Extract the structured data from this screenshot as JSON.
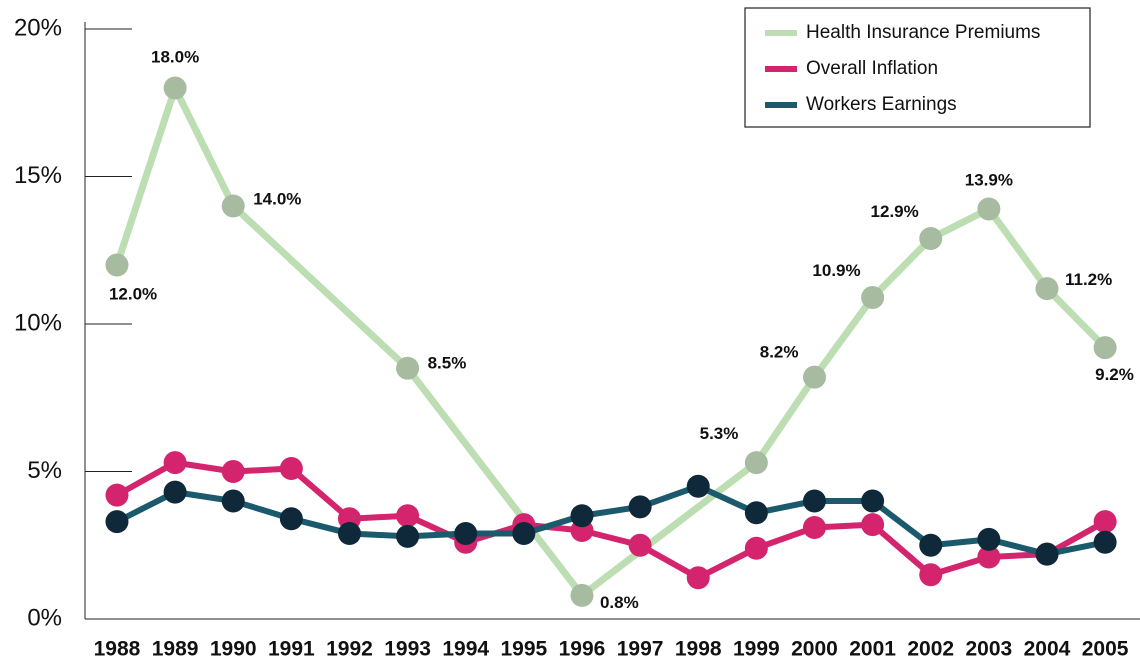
{
  "chart_data": {
    "type": "line",
    "xlim": [
      1987.45,
      2005.6
    ],
    "xticks": [
      1988,
      1989,
      1990,
      1991,
      1992,
      1993,
      1994,
      1995,
      1996,
      1997,
      1998,
      1999,
      2000,
      2001,
      2002,
      2003,
      2004,
      2005
    ],
    "ylim": [
      0,
      20
    ],
    "yticks": [
      {
        "value": 0,
        "label": "0%"
      },
      {
        "value": 5,
        "label": "5%"
      },
      {
        "value": 10,
        "label": "10%"
      },
      {
        "value": 15,
        "label": "15%"
      },
      {
        "value": 20,
        "label": "20%"
      }
    ],
    "legend": "upper right",
    "series": [
      {
        "name": "Health Insurance Premiums",
        "color": "#bcdeb2",
        "marker_color": "#a6bb9f",
        "x": [
          1988,
          1989,
          1990,
          1993,
          1996,
          1999,
          2000,
          2001,
          2002,
          2003,
          2004,
          2005
        ],
        "values": [
          12.0,
          18.0,
          14.0,
          8.5,
          0.8,
          5.3,
          8.2,
          10.9,
          12.9,
          13.9,
          11.2,
          9.2
        ],
        "value_labels": [
          "12.0%",
          "18.0%",
          "14.0%",
          "8.5%",
          "0.8%",
          "5.3%",
          "8.2%",
          "10.9%",
          "12.9%",
          "13.9%",
          "11.2%",
          "9.2%"
        ]
      },
      {
        "name": "Overall Inflation",
        "color": "#d4246d",
        "marker_color": "#d4246d",
        "x": [
          1988,
          1989,
          1990,
          1991,
          1992,
          1993,
          1994,
          1995,
          1996,
          1997,
          1998,
          1999,
          2000,
          2001,
          2002,
          2003,
          2004,
          2005
        ],
        "values": [
          4.2,
          5.3,
          5.0,
          5.1,
          3.4,
          3.5,
          2.6,
          3.2,
          3.0,
          2.5,
          1.4,
          2.4,
          3.1,
          3.2,
          1.5,
          2.1,
          2.2,
          3.3
        ]
      },
      {
        "name": "Workers Earnings",
        "color": "#1b5a6d",
        "marker_color": "#10293a",
        "x": [
          1988,
          1989,
          1990,
          1991,
          1992,
          1993,
          1994,
          1995,
          1996,
          1997,
          1998,
          1999,
          2000,
          2001,
          2002,
          2003,
          2004,
          2005
        ],
        "values": [
          3.3,
          4.3,
          4.0,
          3.4,
          2.9,
          2.8,
          2.9,
          2.9,
          3.5,
          3.8,
          4.5,
          3.6,
          4.0,
          4.0,
          2.5,
          2.7,
          2.2,
          2.6
        ]
      }
    ]
  }
}
